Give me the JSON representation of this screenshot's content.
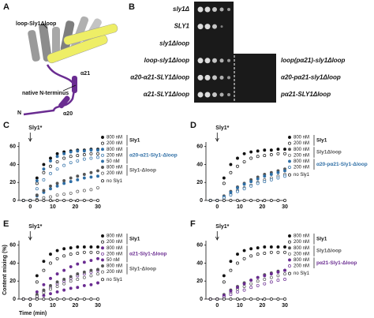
{
  "panel_a": {
    "panel": "A",
    "title": "loop-Sly1Δloop",
    "helix_a21": "α21",
    "n_terminus_label": "native N-terminus",
    "helix_a20": "α20",
    "n": "N"
  },
  "panel_b": {
    "panel": "B",
    "left_rows": [
      "sly1Δ",
      "SLY1",
      "sly1Δloop",
      "loop-sly1Δloop",
      "α20-α21-SLY1Δloop",
      "α21-SLY1Δloop"
    ],
    "right_rows": [
      "loop(pα21)-sly1Δloop",
      "α20-pα21-sly1Δloop",
      "pα21-SLY1Δloop"
    ]
  },
  "chart_data": [
    {
      "type": "scatter",
      "panel": "C",
      "annotation": "Sly1*",
      "xlim": [
        -5,
        30
      ],
      "xticks": [
        0,
        10,
        20,
        30
      ],
      "ylim": [
        0,
        65
      ],
      "yticks": [
        0,
        20,
        40,
        60
      ],
      "x": [
        -3,
        0,
        3,
        6,
        9,
        12,
        15,
        18,
        21,
        24,
        27,
        30
      ],
      "series": [
        {
          "name": "800 nM",
          "group": "Sly1",
          "color": "#111111",
          "filled": true,
          "values": [
            0,
            0,
            25,
            40,
            47,
            52,
            54,
            55,
            56,
            56,
            57,
            57
          ]
        },
        {
          "name": "200 nM",
          "group": "Sly1",
          "color": "#111111",
          "filled": false,
          "values": [
            0,
            0,
            19,
            31,
            38,
            43,
            47,
            49,
            50,
            51,
            52,
            52
          ]
        },
        {
          "name": "800 nM",
          "group": "α20-α21-Sly1-Δloop",
          "color": "#2f6fa6",
          "filled": true,
          "values": [
            0,
            0,
            22,
            35,
            44,
            49,
            52,
            54,
            55,
            55,
            56,
            56
          ]
        },
        {
          "name": "200 nM",
          "group": "α20-α21-Sly1-Δloop",
          "color": "#2f6fa6",
          "filled": false,
          "values": [
            0,
            0,
            13,
            23,
            30,
            35,
            39,
            42,
            44,
            46,
            47,
            48
          ]
        },
        {
          "name": "50 nM",
          "group": "α20-α21-Sly1-Δloop",
          "color": "#2f6fa6",
          "filled": true,
          "values": [
            0,
            0,
            5,
            9,
            13,
            16,
            19,
            21,
            23,
            25,
            26,
            27
          ]
        },
        {
          "name": "800 nM",
          "group": "Sly1-Δloop",
          "color": "#555555",
          "filled": true,
          "values": [
            0,
            0,
            6,
            11,
            16,
            19,
            22,
            25,
            27,
            29,
            31,
            33
          ]
        },
        {
          "name": "200 nM",
          "group": "Sly1-Δloop",
          "color": "#555555",
          "filled": false,
          "values": [
            0,
            0,
            1,
            3,
            4,
            6,
            7,
            8,
            10,
            11,
            12,
            14
          ]
        },
        {
          "name": "no Sly1",
          "color": "#111111",
          "filled": false,
          "values": [
            0,
            0,
            0,
            0,
            0,
            0,
            0,
            0,
            0,
            0,
            0,
            0
          ]
        }
      ]
    },
    {
      "type": "scatter",
      "panel": "D",
      "annotation": "Sly1*",
      "xlim": [
        -5,
        30
      ],
      "xticks": [
        0,
        10,
        20,
        30
      ],
      "ylim": [
        0,
        65
      ],
      "yticks": [
        0,
        20,
        40,
        60
      ],
      "x": [
        -3,
        0,
        3,
        6,
        9,
        12,
        15,
        18,
        21,
        24,
        27,
        30
      ],
      "series": [
        {
          "name": "800 nM",
          "group": "Sly1",
          "color": "#111111",
          "filled": true,
          "values": [
            0,
            0,
            25,
            40,
            47,
            52,
            54,
            55,
            56,
            56,
            57,
            57
          ]
        },
        {
          "name": "200 nM",
          "group": "Sly1",
          "color": "#111111",
          "filled": false,
          "values": [
            0,
            0,
            19,
            31,
            38,
            43,
            47,
            49,
            50,
            51,
            52,
            52
          ]
        },
        {
          "name": "800 nM",
          "group": "Sly1Δloop",
          "color": "#555555",
          "filled": true,
          "values": [
            0,
            0,
            5,
            10,
            15,
            19,
            23,
            26,
            29,
            31,
            33,
            35
          ]
        },
        {
          "name": "200 nM",
          "group": "Sly1Δloop",
          "color": "#555555",
          "filled": false,
          "values": [
            0,
            0,
            3,
            7,
            11,
            14,
            17,
            20,
            23,
            25,
            27,
            29
          ]
        },
        {
          "name": "800 nM",
          "group": "α20-pα21-Sly1-Δloop",
          "color": "#2f6fa6",
          "filled": true,
          "values": [
            0,
            0,
            4,
            9,
            14,
            18,
            21,
            24,
            27,
            29,
            31,
            33
          ]
        },
        {
          "name": "200 nM",
          "group": "α20-pα21-Sly1-Δloop",
          "color": "#2f6fa6",
          "filled": false,
          "values": [
            0,
            0,
            3,
            6,
            10,
            13,
            16,
            19,
            21,
            23,
            25,
            27
          ]
        },
        {
          "name": "no Sly1",
          "color": "#111111",
          "filled": false,
          "values": [
            0,
            0,
            0,
            0,
            0,
            0,
            0,
            0,
            0,
            0,
            0,
            0
          ]
        }
      ]
    },
    {
      "type": "scatter",
      "panel": "E",
      "annotation": "Sly1*",
      "xlabel": "Time (min)",
      "ylabel": "Content mixing (%)",
      "xlim": [
        -5,
        30
      ],
      "xticks": [
        0,
        10,
        20,
        30
      ],
      "ylim": [
        0,
        65
      ],
      "yticks": [
        0,
        20,
        40,
        60
      ],
      "x": [
        -3,
        0,
        3,
        6,
        9,
        12,
        15,
        18,
        21,
        24,
        27,
        30
      ],
      "series": [
        {
          "name": "800 nM",
          "group": "Sly1",
          "color": "#111111",
          "filled": true,
          "values": [
            0,
            0,
            26,
            42,
            50,
            54,
            56,
            57,
            58,
            58,
            58,
            58
          ]
        },
        {
          "name": "200 nM",
          "group": "Sly1",
          "color": "#111111",
          "filled": false,
          "values": [
            0,
            0,
            19,
            32,
            40,
            45,
            48,
            50,
            51,
            52,
            52,
            52
          ]
        },
        {
          "name": "800 nM",
          "group": "α21-Sly1-Δloop",
          "color": "#6a2c91",
          "filled": true,
          "values": [
            0,
            0,
            8,
            16,
            23,
            28,
            32,
            36,
            39,
            41,
            43,
            45
          ]
        },
        {
          "name": "200 nM",
          "group": "α21-Sly1-Δloop",
          "color": "#6a2c91",
          "filled": false,
          "values": [
            0,
            0,
            4,
            9,
            13,
            17,
            20,
            23,
            26,
            28,
            30,
            32
          ]
        },
        {
          "name": "50 nM",
          "group": "α21-Sly1-Δloop",
          "color": "#6a2c91",
          "filled": true,
          "values": [
            0,
            0,
            2,
            4,
            6,
            8,
            10,
            12,
            13,
            15,
            16,
            18
          ]
        },
        {
          "name": "800 nM",
          "group": "Sly1-Δloop",
          "color": "#555555",
          "filled": true,
          "values": [
            0,
            0,
            5,
            10,
            15,
            19,
            22,
            25,
            28,
            30,
            32,
            33
          ]
        },
        {
          "name": "200 nM",
          "group": "Sly1-Δloop",
          "color": "#555555",
          "filled": false,
          "values": [
            0,
            0,
            3,
            7,
            11,
            14,
            17,
            20,
            22,
            24,
            26,
            28
          ]
        },
        {
          "name": "no Sly1",
          "color": "#111111",
          "filled": false,
          "values": [
            0,
            0,
            0,
            0,
            0,
            0,
            0,
            0,
            0,
            0,
            0,
            0
          ]
        }
      ]
    },
    {
      "type": "scatter",
      "panel": "F",
      "annotation": "Sly1*",
      "xlim": [
        -5,
        30
      ],
      "xticks": [
        0,
        10,
        20,
        30
      ],
      "ylim": [
        0,
        65
      ],
      "yticks": [
        0,
        20,
        40,
        60
      ],
      "x": [
        -3,
        0,
        3,
        6,
        9,
        12,
        15,
        18,
        21,
        24,
        27,
        30
      ],
      "series": [
        {
          "name": "800 nM",
          "group": "Sly1",
          "color": "#111111",
          "filled": true,
          "values": [
            0,
            0,
            26,
            42,
            50,
            54,
            56,
            57,
            58,
            58,
            58,
            58
          ]
        },
        {
          "name": "200 nM",
          "group": "Sly1",
          "color": "#111111",
          "filled": false,
          "values": [
            0,
            0,
            19,
            32,
            40,
            45,
            48,
            50,
            51,
            52,
            52,
            52
          ]
        },
        {
          "name": "800 nM",
          "group": "Sly1Δloop",
          "color": "#555555",
          "filled": true,
          "values": [
            0,
            0,
            5,
            10,
            14,
            18,
            21,
            24,
            27,
            29,
            31,
            32
          ]
        },
        {
          "name": "200 nM",
          "group": "Sly1Δloop",
          "color": "#555555",
          "filled": false,
          "values": [
            0,
            0,
            3,
            7,
            11,
            14,
            17,
            20,
            22,
            24,
            26,
            28
          ]
        },
        {
          "name": "800 nM",
          "group": "pα21-Sly1-Δloop",
          "color": "#6a2c91",
          "filled": true,
          "values": [
            0,
            0,
            4,
            9,
            13,
            17,
            21,
            24,
            26,
            28,
            30,
            32
          ]
        },
        {
          "name": "200 nM",
          "group": "pα21-Sly1-Δloop",
          "color": "#6a2c91",
          "filled": false,
          "values": [
            0,
            0,
            2,
            5,
            8,
            10,
            13,
            15,
            17,
            19,
            21,
            22
          ]
        },
        {
          "name": "no Sly1",
          "color": "#111111",
          "filled": false,
          "values": [
            0,
            0,
            0,
            0,
            0,
            0,
            0,
            0,
            0,
            0,
            0,
            0
          ]
        }
      ]
    }
  ]
}
